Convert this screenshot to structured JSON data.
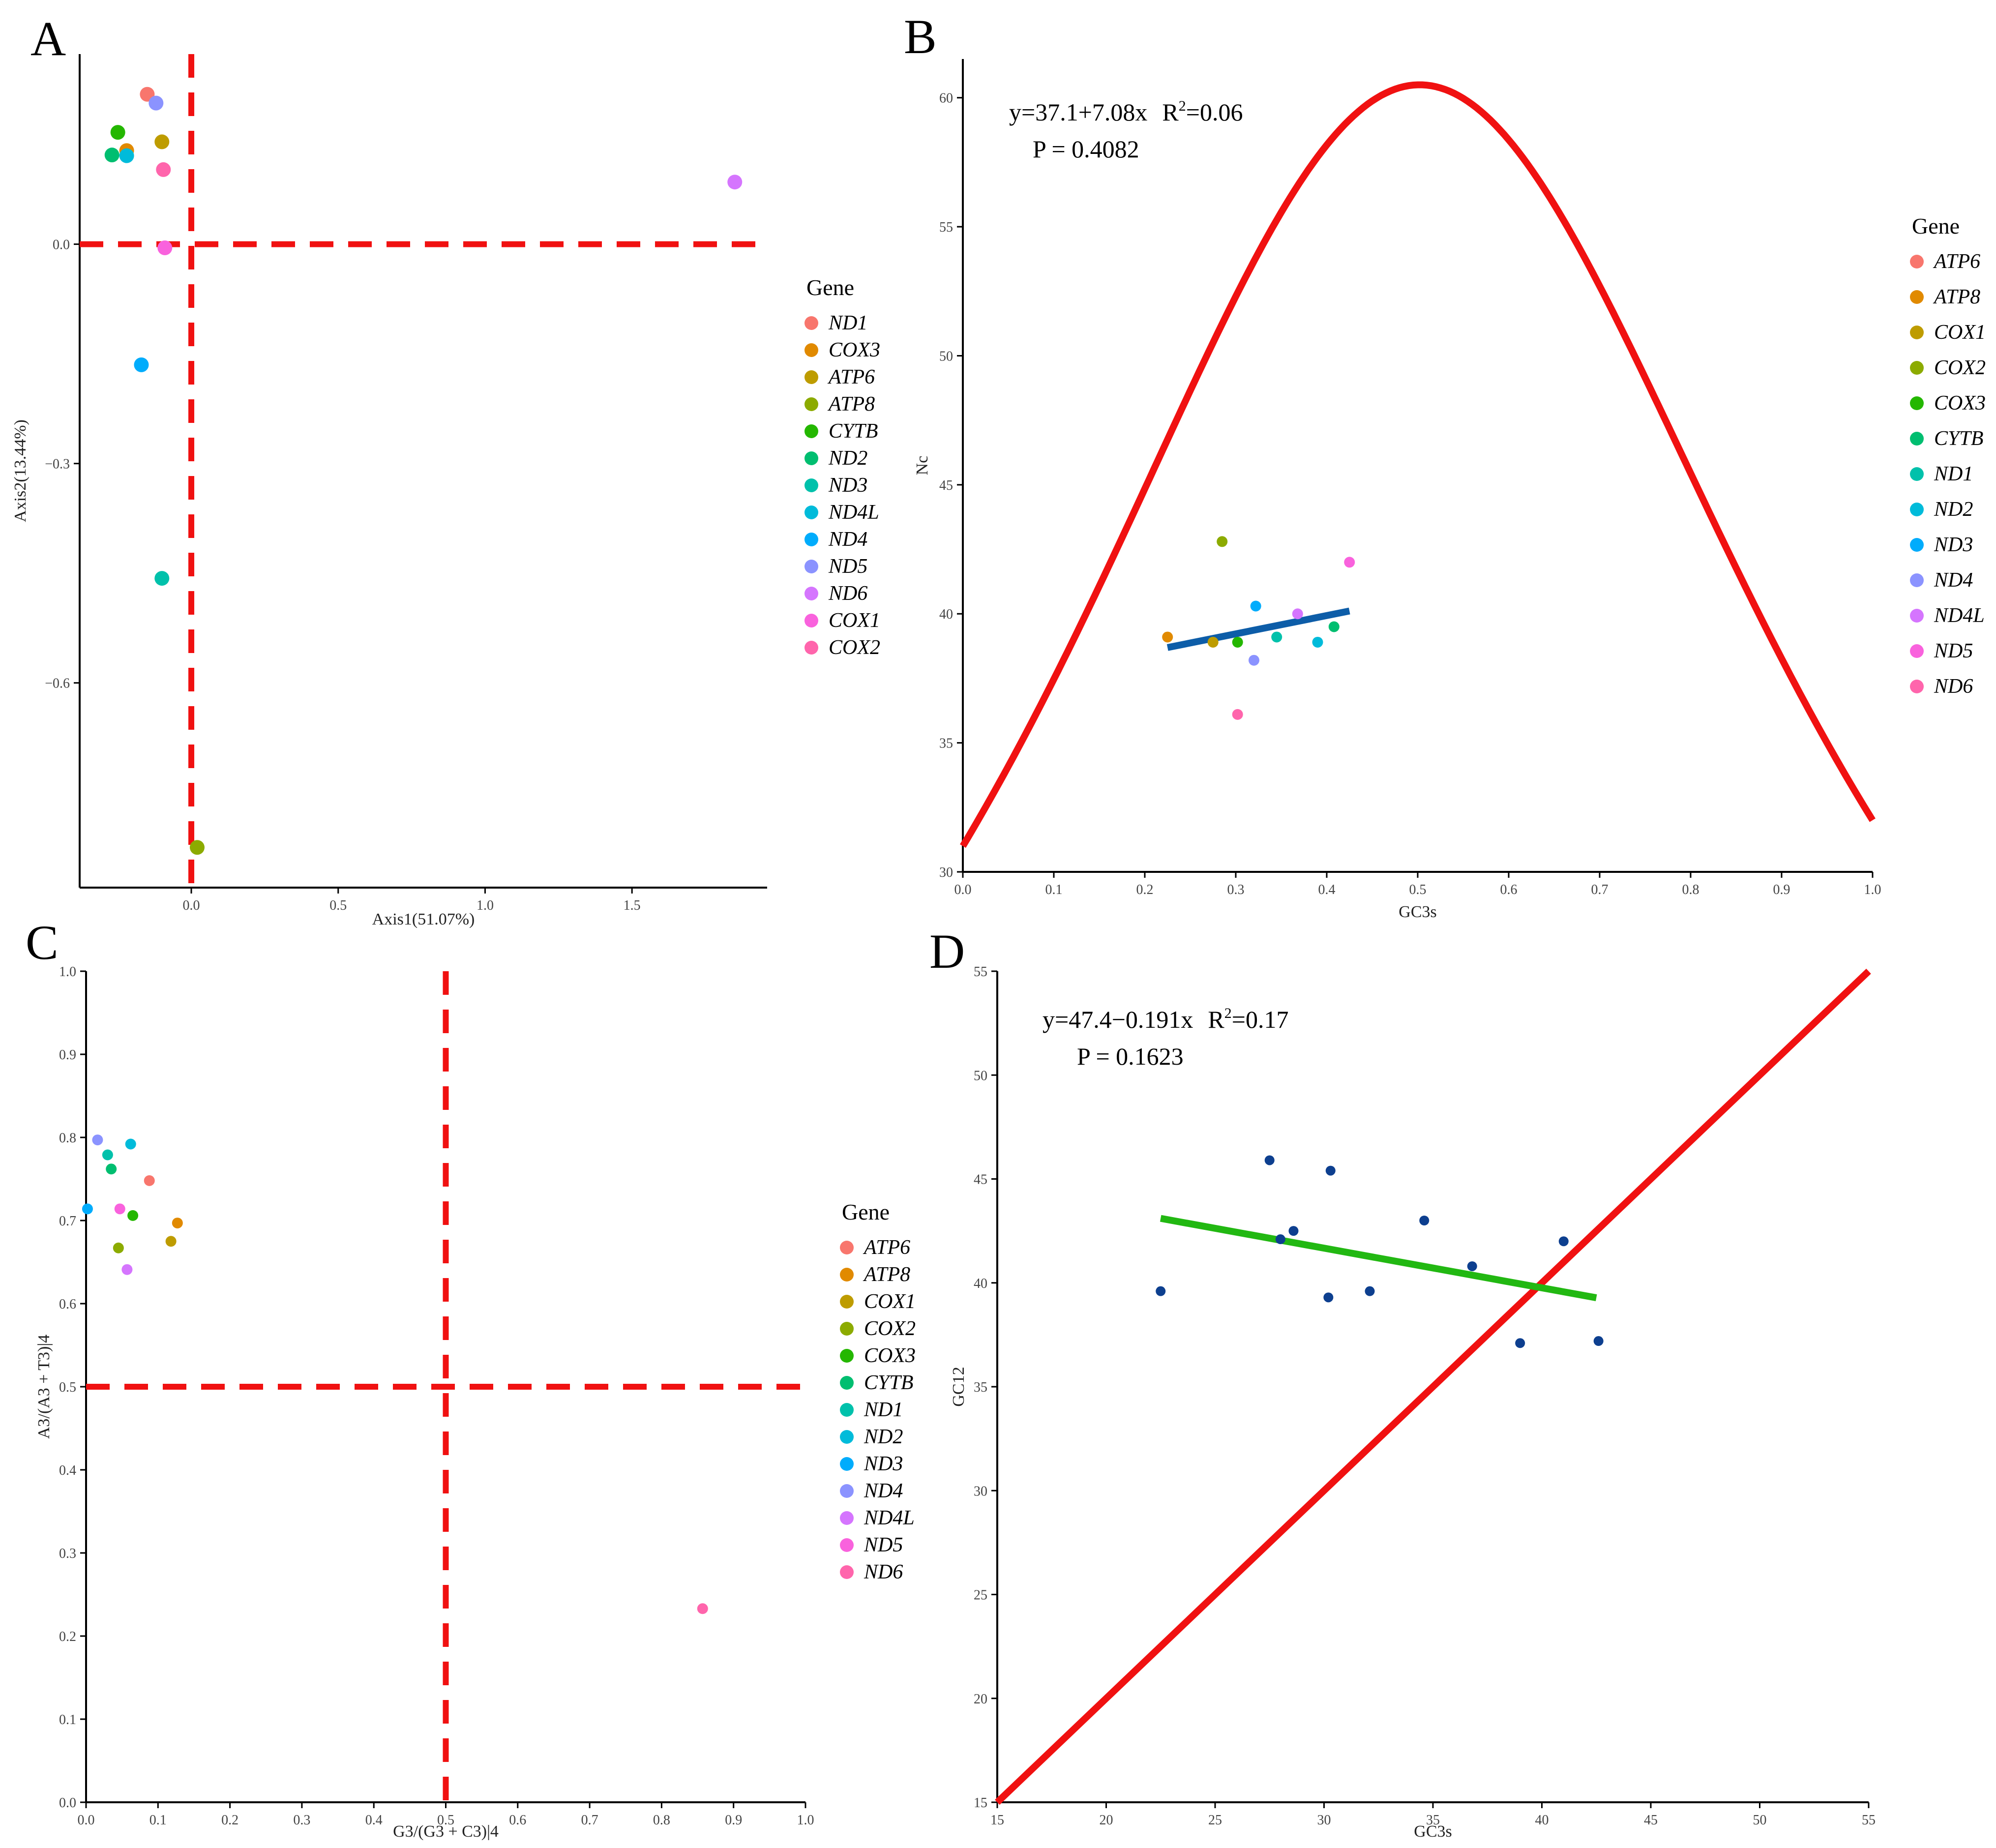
{
  "chart_data": [
    {
      "panel": "A",
      "type": "scatter",
      "xlabel": "Axis1(51.07%)",
      "ylabel": "Axis2(13.44%)",
      "xlim": [
        -0.38,
        1.96
      ],
      "ylim": [
        -0.88,
        0.26
      ],
      "xticks": [
        0.0,
        0.5,
        1.0,
        1.5
      ],
      "xtick_labels": [
        "0.0",
        "0.5",
        "1.0",
        "1.5"
      ],
      "yticks": [
        0.0,
        -0.3,
        -0.6
      ],
      "ytick_labels": [
        "0.0",
        "−0.3",
        "−0.6"
      ],
      "ref_lines": {
        "x": 0.0,
        "y": 0.0
      },
      "legend": {
        "title": "Gene",
        "placement": "right",
        "items": [
          {
            "label": "ND1",
            "color": "#F8766D"
          },
          {
            "label": "COX3",
            "color": "#E18A00"
          },
          {
            "label": "ATP6",
            "color": "#BE9C00"
          },
          {
            "label": "ATP8",
            "color": "#8CAB00"
          },
          {
            "label": "CYTB",
            "color": "#24B700"
          },
          {
            "label": "ND2",
            "color": "#00BE70"
          },
          {
            "label": "ND3",
            "color": "#00C1AB"
          },
          {
            "label": "ND4L",
            "color": "#00BBDA"
          },
          {
            "label": "ND4",
            "color": "#00ACFC"
          },
          {
            "label": "ND5",
            "color": "#8B93FF"
          },
          {
            "label": "ND6",
            "color": "#D575FE"
          },
          {
            "label": "COX1",
            "color": "#F962DD"
          },
          {
            "label": "COX2",
            "color": "#FF65AC"
          }
        ]
      },
      "points": [
        {
          "gene": "ND1",
          "x": -0.15,
          "y": 0.205,
          "color": "#F8766D"
        },
        {
          "gene": "COX3",
          "x": -0.22,
          "y": 0.128,
          "color": "#E18A00"
        },
        {
          "gene": "ATP6",
          "x": -0.1,
          "y": 0.14,
          "color": "#BE9C00"
        },
        {
          "gene": "ATP8",
          "x": 0.02,
          "y": -0.825,
          "color": "#8CAB00"
        },
        {
          "gene": "CYTB",
          "x": -0.25,
          "y": 0.153,
          "color": "#24B700"
        },
        {
          "gene": "ND2",
          "x": -0.27,
          "y": 0.122,
          "color": "#00BE70"
        },
        {
          "gene": "ND3",
          "x": -0.1,
          "y": -0.457,
          "color": "#00C1AB"
        },
        {
          "gene": "ND4L",
          "x": -0.22,
          "y": 0.121,
          "color": "#00BBDA"
        },
        {
          "gene": "ND4",
          "x": -0.17,
          "y": -0.165,
          "color": "#00ACFC"
        },
        {
          "gene": "ND5",
          "x": -0.12,
          "y": 0.193,
          "color": "#8B93FF"
        },
        {
          "gene": "ND6",
          "x": 1.85,
          "y": 0.085,
          "color": "#D575FE"
        },
        {
          "gene": "COX1",
          "x": -0.09,
          "y": -0.005,
          "color": "#F962DD"
        },
        {
          "gene": "COX2",
          "x": -0.095,
          "y": 0.102,
          "color": "#FF65AC"
        }
      ]
    },
    {
      "panel": "B",
      "type": "scatter",
      "xlabel": "GC3s",
      "ylabel": "Nc",
      "xlim": [
        0.0,
        1.0
      ],
      "ylim": [
        30,
        61.5
      ],
      "xticks": [
        0.0,
        0.1,
        0.2,
        0.3,
        0.4,
        0.5,
        0.6,
        0.7,
        0.8,
        0.9,
        1.0
      ],
      "xtick_labels": [
        "0.0",
        "0.1",
        "0.2",
        "0.3",
        "0.4",
        "0.5",
        "0.6",
        "0.7",
        "0.8",
        "0.9",
        "1.0"
      ],
      "yticks": [
        30,
        35,
        40,
        45,
        50,
        55,
        60
      ],
      "ytick_labels": [
        "30",
        "35",
        "40",
        "45",
        "50",
        "55",
        "60"
      ],
      "expected_curve": "Nc = 2 + GC3s + 29/(GC3s^2 + (1-GC3s)^2)",
      "regression": {
        "intercept": 37.1,
        "slope": 7.08,
        "x_range": [
          0.225,
          0.425
        ]
      },
      "annotation": {
        "eq_prefix": "y=37.1+7.08x",
        "r2_prefix": "R",
        "r2_sup": "2",
        "r2_value": "=0.06",
        "p": "P = 0.4082"
      },
      "legend": {
        "title": "Gene",
        "placement": "right",
        "items": [
          {
            "label": "ATP6",
            "color": "#F8766D"
          },
          {
            "label": "ATP8",
            "color": "#E18A00"
          },
          {
            "label": "COX1",
            "color": "#BE9C00"
          },
          {
            "label": "COX2",
            "color": "#8CAB00"
          },
          {
            "label": "COX3",
            "color": "#24B700"
          },
          {
            "label": "CYTB",
            "color": "#00BE70"
          },
          {
            "label": "ND1",
            "color": "#00C1AB"
          },
          {
            "label": "ND2",
            "color": "#00BBDA"
          },
          {
            "label": "ND3",
            "color": "#00ACFC"
          },
          {
            "label": "ND4",
            "color": "#8B93FF"
          },
          {
            "label": "ND4L",
            "color": "#D575FE"
          },
          {
            "label": "ND5",
            "color": "#F962DD"
          },
          {
            "label": "ND6",
            "color": "#FF65AC"
          }
        ]
      },
      "points": [
        {
          "gene": "ATP8",
          "x": 0.225,
          "y": 39.1,
          "color": "#E18A00"
        },
        {
          "gene": "COX1",
          "x": 0.275,
          "y": 38.9,
          "color": "#BE9C00"
        },
        {
          "gene": "COX2",
          "x": 0.285,
          "y": 42.8,
          "color": "#8CAB00"
        },
        {
          "gene": "COX3",
          "x": 0.302,
          "y": 38.9,
          "color": "#24B700"
        },
        {
          "gene": "ND6",
          "x": 0.302,
          "y": 36.1,
          "color": "#FF65AC"
        },
        {
          "gene": "ND4",
          "x": 0.32,
          "y": 38.2,
          "color": "#8B93FF"
        },
        {
          "gene": "ND3",
          "x": 0.322,
          "y": 40.3,
          "color": "#00ACFC"
        },
        {
          "gene": "ND1",
          "x": 0.345,
          "y": 39.1,
          "color": "#00C1AB"
        },
        {
          "gene": "ND4L",
          "x": 0.368,
          "y": 40.0,
          "color": "#D575FE"
        },
        {
          "gene": "ND2",
          "x": 0.39,
          "y": 38.9,
          "color": "#00BBDA"
        },
        {
          "gene": "CYTB",
          "x": 0.408,
          "y": 39.5,
          "color": "#00BE70"
        },
        {
          "gene": "ND5",
          "x": 0.425,
          "y": 42.0,
          "color": "#F962DD"
        }
      ]
    },
    {
      "panel": "C",
      "type": "scatter",
      "xlabel": "G3/(G3 + C3)|4",
      "ylabel": "A3/(A3 + T3)|4",
      "xlim": [
        0.0,
        1.0
      ],
      "ylim": [
        0.0,
        1.0
      ],
      "xticks": [
        0.0,
        0.1,
        0.2,
        0.3,
        0.4,
        0.5,
        0.6,
        0.7,
        0.8,
        0.9,
        1.0
      ],
      "xtick_labels": [
        "0.0",
        "0.1",
        "0.2",
        "0.3",
        "0.4",
        "0.5",
        "0.6",
        "0.7",
        "0.8",
        "0.9",
        "1.0"
      ],
      "yticks": [
        0.0,
        0.1,
        0.2,
        0.3,
        0.4,
        0.5,
        0.6,
        0.7,
        0.8,
        0.9,
        1.0
      ],
      "ytick_labels": [
        "0.0",
        "0.1",
        "0.2",
        "0.3",
        "0.4",
        "0.5",
        "0.6",
        "0.7",
        "0.8",
        "0.9",
        "1.0"
      ],
      "ref_lines": {
        "x": 0.5,
        "y": 0.5
      },
      "legend": {
        "title": "Gene",
        "placement": "right",
        "items": [
          {
            "label": "ATP6",
            "color": "#F8766D"
          },
          {
            "label": "ATP8",
            "color": "#E18A00"
          },
          {
            "label": "COX1",
            "color": "#BE9C00"
          },
          {
            "label": "COX2",
            "color": "#8CAB00"
          },
          {
            "label": "COX3",
            "color": "#24B700"
          },
          {
            "label": "CYTB",
            "color": "#00BE70"
          },
          {
            "label": "ND1",
            "color": "#00C1AB"
          },
          {
            "label": "ND2",
            "color": "#00BBDA"
          },
          {
            "label": "ND3",
            "color": "#00ACFC"
          },
          {
            "label": "ND4",
            "color": "#8B93FF"
          },
          {
            "label": "ND4L",
            "color": "#D575FE"
          },
          {
            "label": "ND5",
            "color": "#F962DD"
          },
          {
            "label": "ND6",
            "color": "#FF65AC"
          }
        ]
      },
      "points": [
        {
          "gene": "ATP6",
          "x": 0.088,
          "y": 0.748,
          "color": "#F8766D"
        },
        {
          "gene": "ATP8",
          "x": 0.127,
          "y": 0.697,
          "color": "#E18A00"
        },
        {
          "gene": "COX1",
          "x": 0.118,
          "y": 0.675,
          "color": "#BE9C00"
        },
        {
          "gene": "COX2",
          "x": 0.045,
          "y": 0.667,
          "color": "#8CAB00"
        },
        {
          "gene": "COX3",
          "x": 0.065,
          "y": 0.706,
          "color": "#24B700"
        },
        {
          "gene": "CYTB",
          "x": 0.035,
          "y": 0.762,
          "color": "#00BE70"
        },
        {
          "gene": "ND1",
          "x": 0.03,
          "y": 0.779,
          "color": "#00C1AB"
        },
        {
          "gene": "ND2",
          "x": 0.062,
          "y": 0.792,
          "color": "#00BBDA"
        },
        {
          "gene": "ND3",
          "x": 0.002,
          "y": 0.714,
          "color": "#00ACFC"
        },
        {
          "gene": "ND4",
          "x": 0.016,
          "y": 0.797,
          "color": "#8B93FF"
        },
        {
          "gene": "ND4L",
          "x": 0.057,
          "y": 0.641,
          "color": "#D575FE"
        },
        {
          "gene": "ND5",
          "x": 0.047,
          "y": 0.714,
          "color": "#F962DD"
        },
        {
          "gene": "ND6",
          "x": 0.857,
          "y": 0.233,
          "color": "#FF65AC"
        }
      ]
    },
    {
      "panel": "D",
      "type": "scatter",
      "xlabel": "GC3s",
      "ylabel": "GC12",
      "xlim": [
        15,
        55
      ],
      "ylim": [
        15,
        55
      ],
      "xticks": [
        15,
        20,
        25,
        30,
        35,
        40,
        45,
        50,
        55
      ],
      "xtick_labels": [
        "15",
        "20",
        "25",
        "30",
        "35",
        "40",
        "45",
        "50",
        "55"
      ],
      "yticks": [
        15,
        20,
        25,
        30,
        35,
        40,
        45,
        50,
        55
      ],
      "ytick_labels": [
        "15",
        "20",
        "25",
        "30",
        "35",
        "40",
        "45",
        "50",
        "55"
      ],
      "diagonal": [
        [
          15,
          15
        ],
        [
          55,
          55
        ]
      ],
      "regression": {
        "intercept": 47.4,
        "slope": -0.191,
        "x_range": [
          22.5,
          42.5
        ]
      },
      "annotation": {
        "eq_prefix": "y=47.4−0.191x",
        "r2_prefix": "R",
        "r2_sup": "2",
        "r2_value": "=0.17",
        "p": "P = 0.1623"
      },
      "point_color": "#0D3F8F",
      "points": [
        {
          "x": 22.5,
          "y": 39.6
        },
        {
          "x": 27.5,
          "y": 45.9
        },
        {
          "x": 28.0,
          "y": 42.1
        },
        {
          "x": 28.6,
          "y": 42.5
        },
        {
          "x": 30.2,
          "y": 39.3
        },
        {
          "x": 30.3,
          "y": 45.4
        },
        {
          "x": 32.1,
          "y": 39.6
        },
        {
          "x": 34.6,
          "y": 43.0
        },
        {
          "x": 36.8,
          "y": 40.8
        },
        {
          "x": 39.0,
          "y": 37.1
        },
        {
          "x": 41.0,
          "y": 42.0
        },
        {
          "x": 42.6,
          "y": 37.2
        }
      ]
    }
  ],
  "panel_letters": {
    "A": "A",
    "B": "B",
    "C": "C",
    "D": "D"
  },
  "colors": {
    "reference": "#F01111",
    "fit_B": "#0D5DA8",
    "fit_D": "#22B812",
    "expected_curve": "#F01111"
  }
}
